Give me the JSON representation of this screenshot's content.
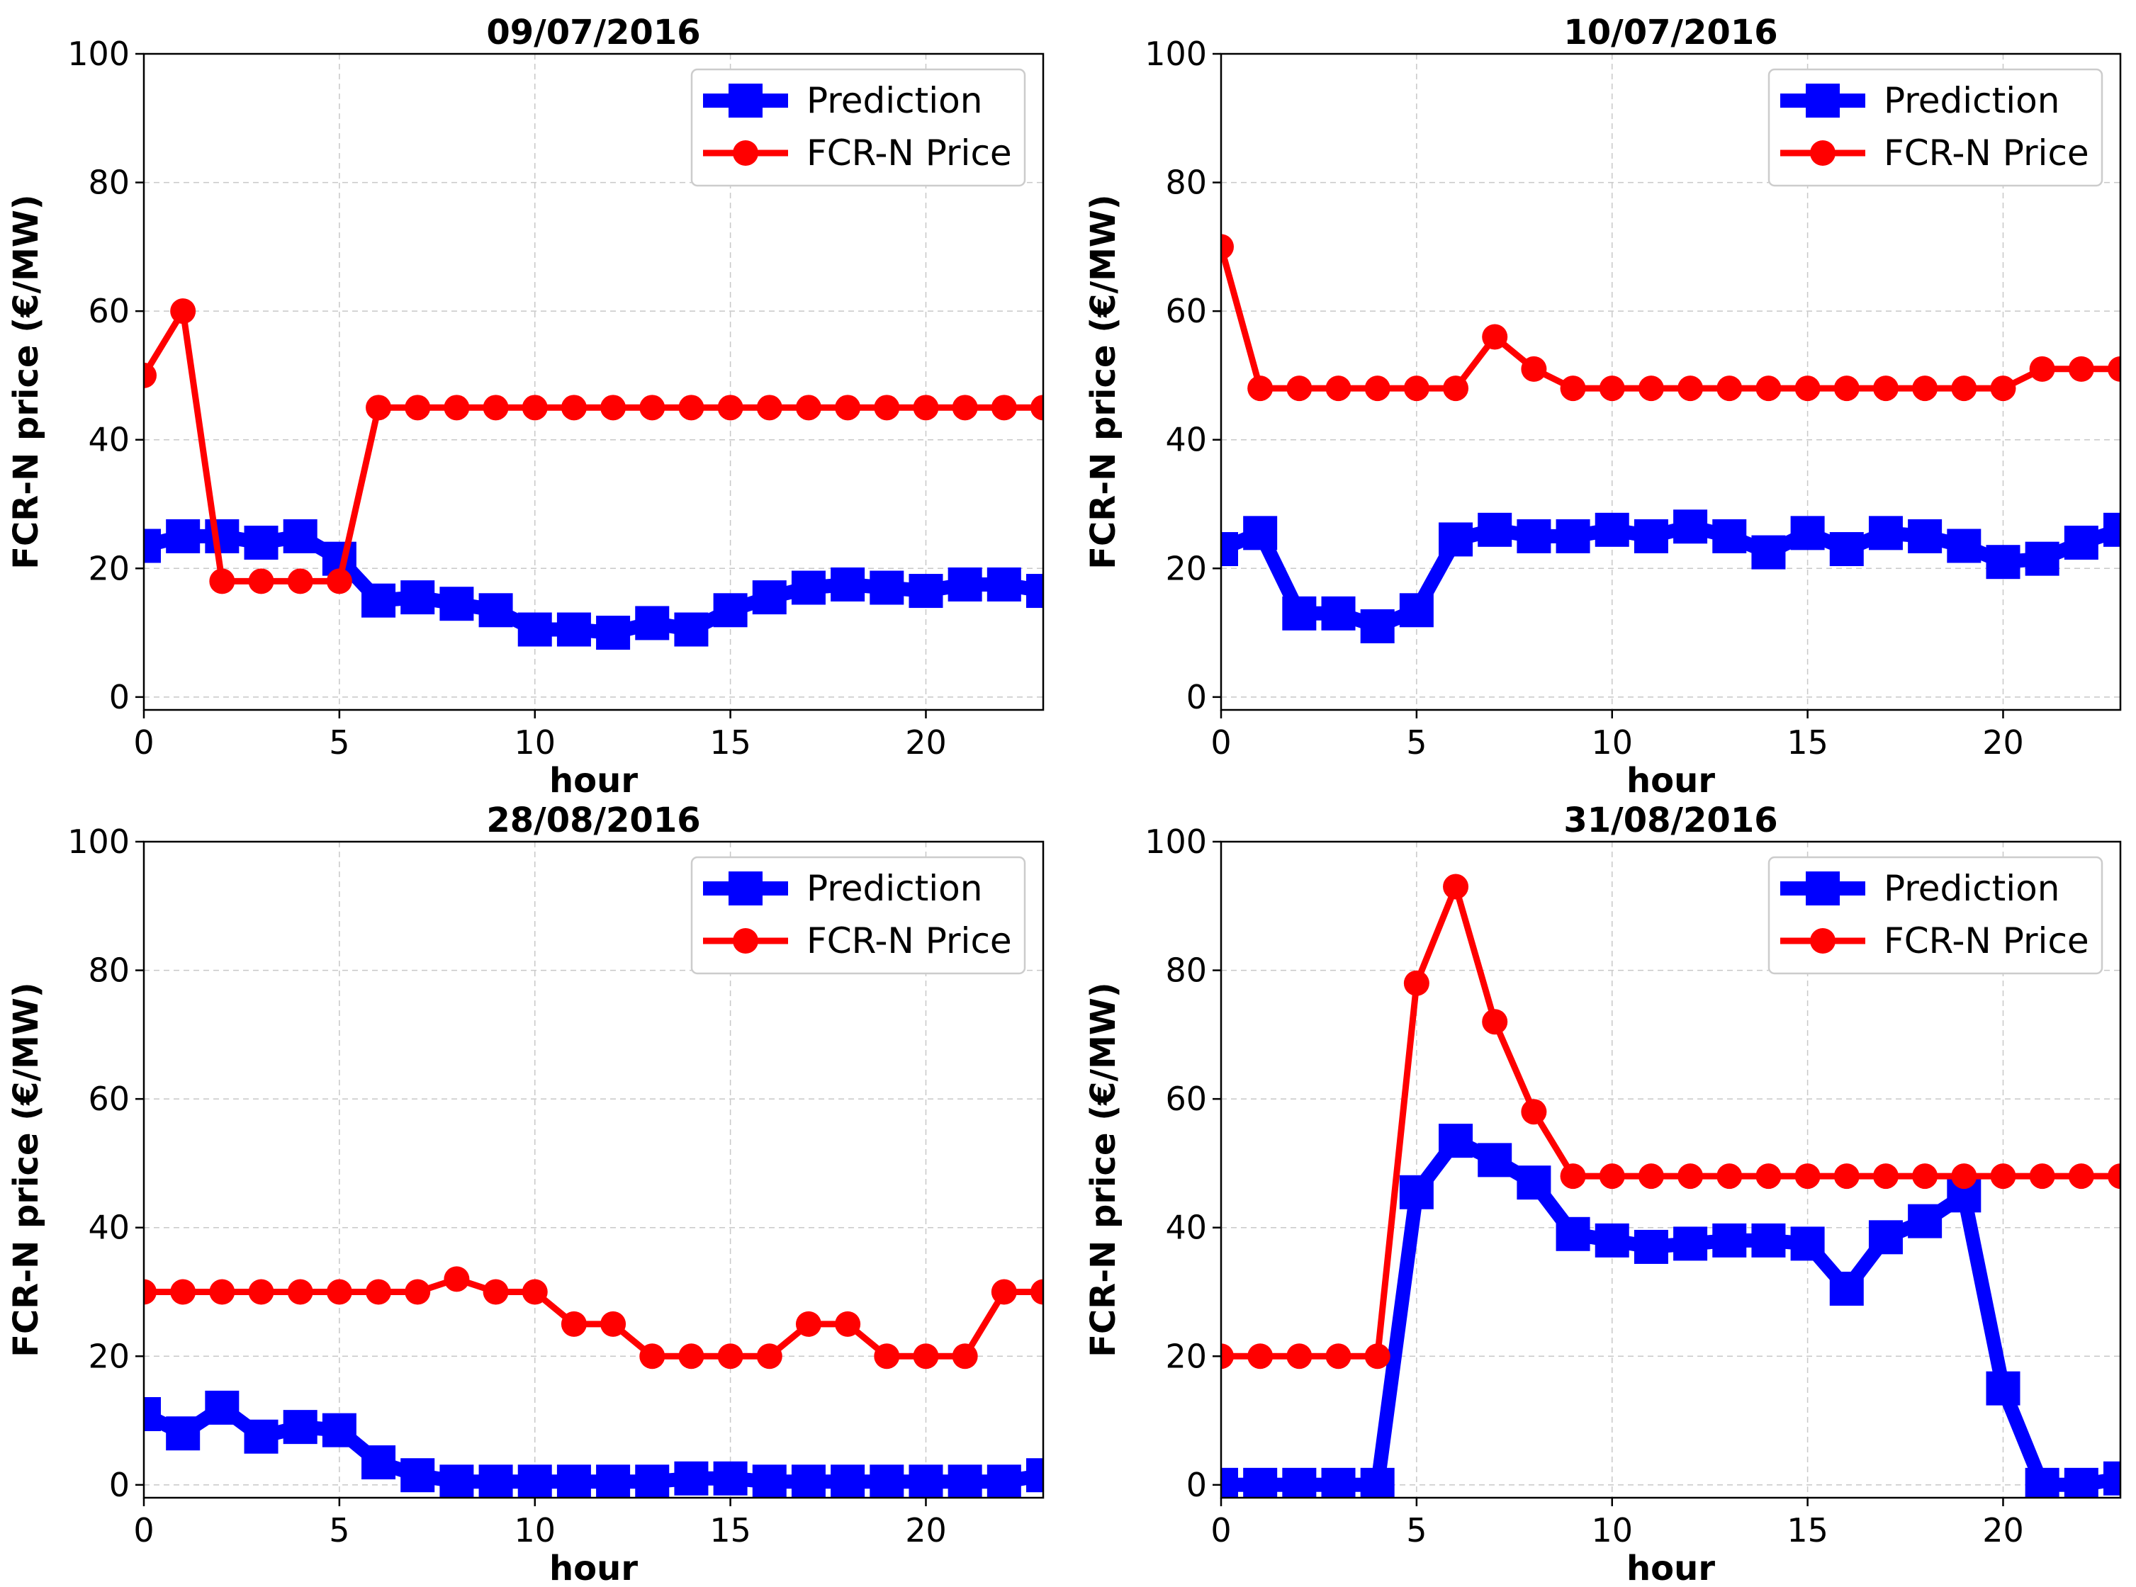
{
  "figure": {
    "colors": {
      "prediction": "#0000ff",
      "price": "#ff0000",
      "grid": "#c8c8c8",
      "frame": "#000000"
    }
  },
  "chart_data": [
    {
      "type": "line",
      "title": "09/07/2016",
      "xlabel": "hour",
      "ylabel": "FCR-N price (€/MW)",
      "xlim": [
        0,
        23
      ],
      "ylim": [
        -2,
        100
      ],
      "xticks": [
        0,
        5,
        10,
        15,
        20
      ],
      "yticks": [
        0,
        20,
        40,
        60,
        80,
        100
      ],
      "grid": true,
      "legend": "top-right",
      "x": [
        0,
        1,
        2,
        3,
        4,
        5,
        6,
        7,
        8,
        9,
        10,
        11,
        12,
        13,
        14,
        15,
        16,
        17,
        18,
        19,
        20,
        21,
        22,
        23
      ],
      "series": [
        {
          "name": "Prediction",
          "marker": "square",
          "color": "#0000ff",
          "values": [
            23.5,
            25,
            25,
            24,
            25,
            21.5,
            15,
            15.5,
            14.5,
            13.5,
            10.5,
            10.5,
            10,
            11.5,
            10.5,
            13.5,
            15.5,
            17,
            17.5,
            17,
            16.5,
            17.5,
            17.5,
            16.5
          ]
        },
        {
          "name": "FCR-N Price",
          "marker": "circle",
          "color": "#ff0000",
          "values": [
            50,
            60,
            18,
            18,
            18,
            18,
            45,
            45,
            45,
            45,
            45,
            45,
            45,
            45,
            45,
            45,
            45,
            45,
            45,
            45,
            45,
            45,
            45,
            45
          ]
        }
      ]
    },
    {
      "type": "line",
      "title": "10/07/2016",
      "xlabel": "hour",
      "ylabel": "FCR-N price (€/MW)",
      "xlim": [
        0,
        23
      ],
      "ylim": [
        -2,
        100
      ],
      "xticks": [
        0,
        5,
        10,
        15,
        20
      ],
      "yticks": [
        0,
        20,
        40,
        60,
        80,
        100
      ],
      "grid": true,
      "legend": "top-right",
      "x": [
        0,
        1,
        2,
        3,
        4,
        5,
        6,
        7,
        8,
        9,
        10,
        11,
        12,
        13,
        14,
        15,
        16,
        17,
        18,
        19,
        20,
        21,
        22,
        23
      ],
      "series": [
        {
          "name": "Prediction",
          "marker": "square",
          "color": "#0000ff",
          "values": [
            23,
            25.5,
            13,
            13,
            11,
            13.5,
            24.5,
            26,
            25,
            25,
            26,
            25,
            26.5,
            25,
            22.5,
            25.5,
            23,
            25.5,
            25,
            23.5,
            21,
            21.5,
            24,
            26
          ]
        },
        {
          "name": "FCR-N Price",
          "marker": "circle",
          "color": "#ff0000",
          "values": [
            70,
            48,
            48,
            48,
            48,
            48,
            48,
            56,
            51,
            48,
            48,
            48,
            48,
            48,
            48,
            48,
            48,
            48,
            48,
            48,
            48,
            51,
            51,
            51
          ]
        }
      ]
    },
    {
      "type": "line",
      "title": "28/08/2016",
      "xlabel": "hour",
      "ylabel": "FCR-N price (€/MW)",
      "xlim": [
        0,
        23
      ],
      "ylim": [
        -2,
        100
      ],
      "xticks": [
        0,
        5,
        10,
        15,
        20
      ],
      "yticks": [
        0,
        20,
        40,
        60,
        80,
        100
      ],
      "grid": true,
      "legend": "top-right",
      "x": [
        0,
        1,
        2,
        3,
        4,
        5,
        6,
        7,
        8,
        9,
        10,
        11,
        12,
        13,
        14,
        15,
        16,
        17,
        18,
        19,
        20,
        21,
        22,
        23
      ],
      "series": [
        {
          "name": "Prediction",
          "marker": "square",
          "color": "#0000ff",
          "values": [
            11,
            8,
            12,
            7.5,
            9,
            8.5,
            3.5,
            1.5,
            0.5,
            0.5,
            0.5,
            0.5,
            0.5,
            0.5,
            1,
            1,
            0.5,
            0.5,
            0.5,
            0.5,
            0.5,
            0.5,
            0.5,
            1.5
          ]
        },
        {
          "name": "FCR-N Price",
          "marker": "circle",
          "color": "#ff0000",
          "values": [
            30,
            30,
            30,
            30,
            30,
            30,
            30,
            30,
            32,
            30,
            30,
            25,
            25,
            20,
            20,
            20,
            20,
            25,
            25,
            20,
            20,
            20,
            30,
            30
          ]
        }
      ]
    },
    {
      "type": "line",
      "title": "31/08/2016",
      "xlabel": "hour",
      "ylabel": "FCR-N price (€/MW)",
      "xlim": [
        0,
        23
      ],
      "ylim": [
        -2,
        100
      ],
      "xticks": [
        0,
        5,
        10,
        15,
        20
      ],
      "yticks": [
        0,
        20,
        40,
        60,
        80,
        100
      ],
      "grid": true,
      "legend": "top-right",
      "x": [
        0,
        1,
        2,
        3,
        4,
        5,
        6,
        7,
        8,
        9,
        10,
        11,
        12,
        13,
        14,
        15,
        16,
        17,
        18,
        19,
        20,
        21,
        22,
        23
      ],
      "series": [
        {
          "name": "Prediction",
          "marker": "square",
          "color": "#0000ff",
          "values": [
            0,
            0,
            0,
            0,
            0,
            45.5,
            53.5,
            50.5,
            47,
            39,
            38,
            37,
            37.5,
            38,
            38,
            37.5,
            30.5,
            38.5,
            41,
            45,
            15,
            0,
            0,
            1
          ]
        },
        {
          "name": "FCR-N Price",
          "marker": "circle",
          "color": "#ff0000",
          "values": [
            20,
            20,
            20,
            20,
            20,
            78,
            93,
            72,
            58,
            48,
            48,
            48,
            48,
            48,
            48,
            48,
            48,
            48,
            48,
            48,
            48,
            48,
            48,
            48
          ]
        }
      ]
    }
  ]
}
